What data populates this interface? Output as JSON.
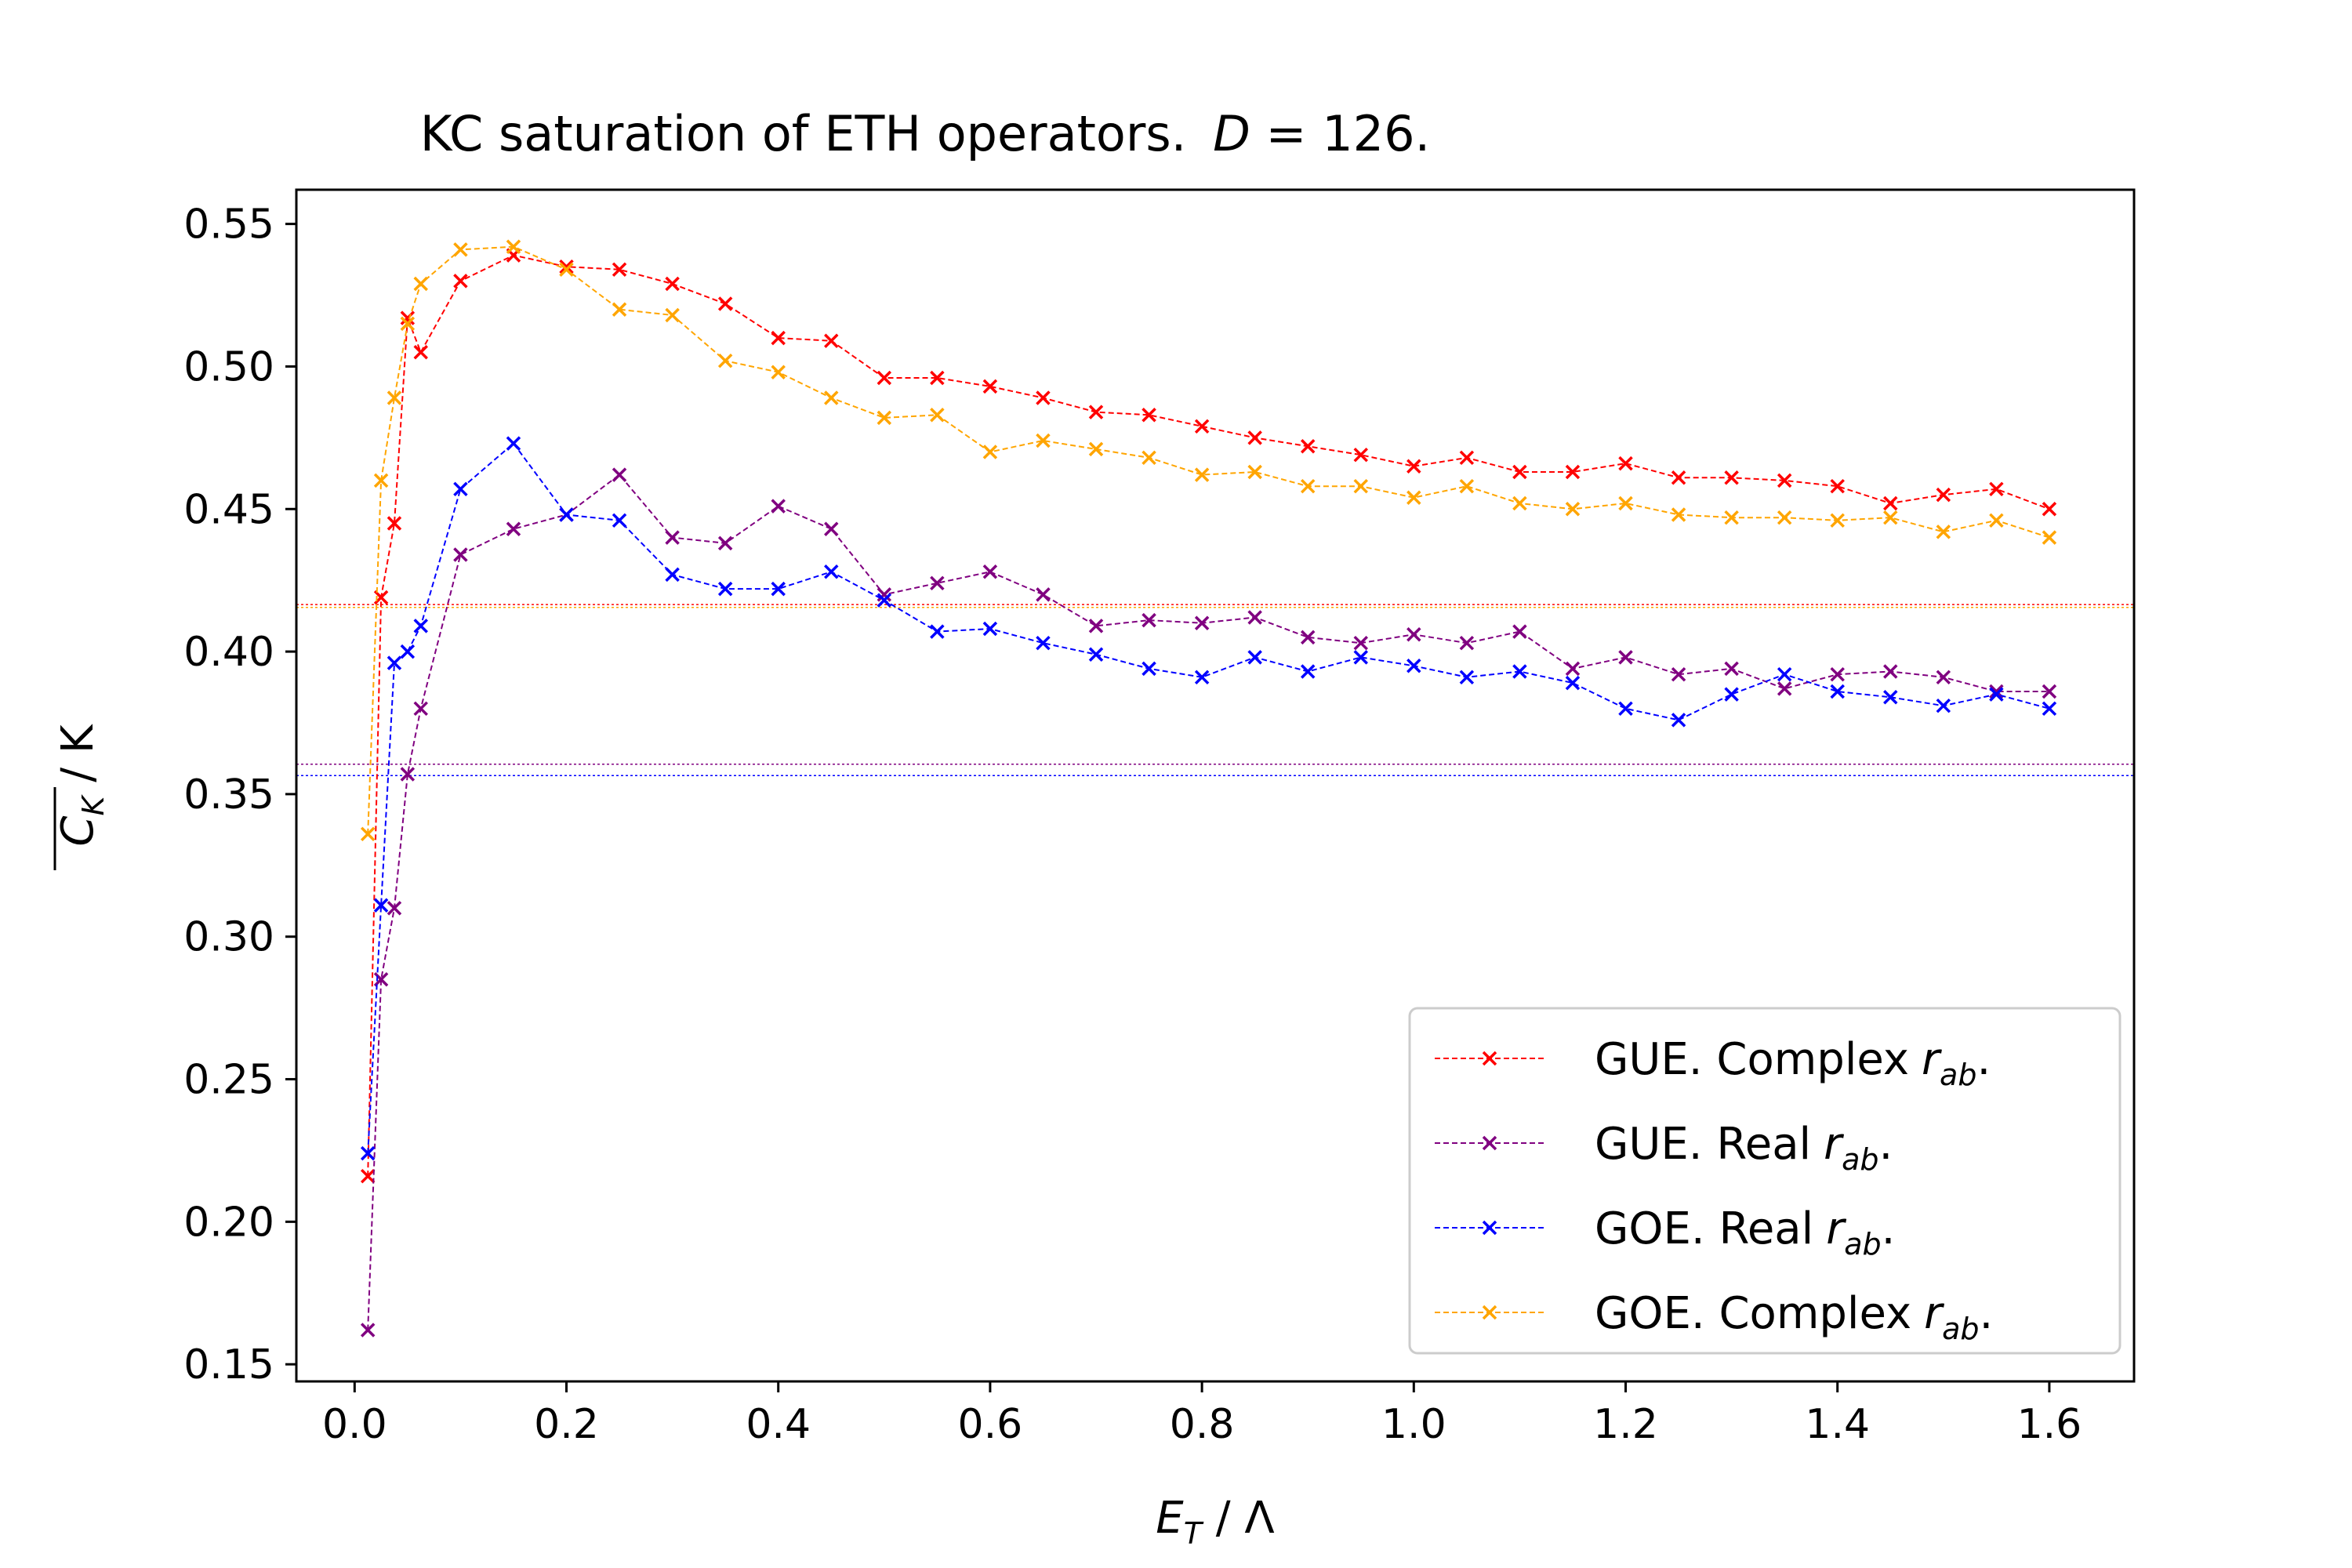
{
  "chart_data": {
    "type": "line",
    "title": "KC saturation of ETH operators.",
    "title_math": {
      "var": "D",
      "op": " = ",
      "value": "126",
      "suffix": "."
    },
    "xlabel": {
      "main": "E",
      "sub": "T",
      "rest": " / Λ"
    },
    "ylabel": {
      "main": "C",
      "sub": "K",
      "rest": " / K"
    },
    "xlim": [
      -0.055,
      1.68
    ],
    "ylim": [
      0.144,
      0.562
    ],
    "xticks": [
      "0.0",
      "0.2",
      "0.4",
      "0.6",
      "0.8",
      "1.0",
      "1.2",
      "1.4",
      "1.6"
    ],
    "yticks": [
      "0.15",
      "0.20",
      "0.25",
      "0.30",
      "0.35",
      "0.40",
      "0.45",
      "0.50",
      "0.55"
    ],
    "x": [
      0.0125,
      0.025,
      0.0375,
      0.05,
      0.0625,
      0.1,
      0.15,
      0.2,
      0.25,
      0.3,
      0.35,
      0.4,
      0.45,
      0.5,
      0.55,
      0.6,
      0.65,
      0.7,
      0.75,
      0.8,
      0.85,
      0.9,
      0.95,
      1.0,
      1.05,
      1.1,
      1.15,
      1.2,
      1.25,
      1.3,
      1.35,
      1.4,
      1.45,
      1.5,
      1.55,
      1.6
    ],
    "series": [
      {
        "name": "GUE. Complex",
        "name_math": "r",
        "name_sub": "ab",
        "name_suffix": ".",
        "color": "#ff0000",
        "saturation_level": 0.4165,
        "values": [
          0.216,
          0.419,
          0.445,
          0.517,
          0.505,
          0.53,
          0.539,
          0.535,
          0.534,
          0.529,
          0.522,
          0.51,
          0.509,
          0.496,
          0.496,
          0.493,
          0.489,
          0.484,
          0.483,
          0.479,
          0.475,
          0.472,
          0.469,
          0.465,
          0.468,
          0.463,
          0.463,
          0.466,
          0.461,
          0.461,
          0.46,
          0.458,
          0.452,
          0.455,
          0.457,
          0.45
        ]
      },
      {
        "name": "GUE. Real",
        "name_math": "r",
        "name_sub": "ab",
        "name_suffix": ".",
        "color": "#800080",
        "saturation_level": 0.3605,
        "values": [
          0.162,
          0.285,
          0.31,
          0.357,
          0.38,
          0.434,
          0.443,
          0.448,
          0.462,
          0.44,
          0.438,
          0.451,
          0.443,
          0.42,
          0.424,
          0.428,
          0.42,
          0.409,
          0.411,
          0.41,
          0.412,
          0.405,
          0.403,
          0.406,
          0.403,
          0.407,
          0.394,
          0.398,
          0.392,
          0.394,
          0.387,
          0.392,
          0.393,
          0.391,
          0.386,
          0.386
        ]
      },
      {
        "name": "GOE. Real",
        "name_math": "r",
        "name_sub": "ab",
        "name_suffix": ".",
        "color": "#0000ff",
        "saturation_level": 0.3565,
        "values": [
          0.224,
          0.311,
          0.396,
          0.4,
          0.409,
          0.457,
          0.473,
          0.448,
          0.446,
          0.427,
          0.422,
          0.422,
          0.428,
          0.418,
          0.407,
          0.408,
          0.403,
          0.399,
          0.394,
          0.391,
          0.398,
          0.393,
          0.398,
          0.395,
          0.391,
          0.393,
          0.389,
          0.38,
          0.376,
          0.385,
          0.392,
          0.386,
          0.384,
          0.381,
          0.385,
          0.38
        ]
      },
      {
        "name": "GOE. Complex",
        "name_math": "r",
        "name_sub": "ab",
        "name_suffix": ".",
        "color": "#ffa500",
        "saturation_level": 0.4155,
        "values": [
          0.336,
          0.46,
          0.489,
          0.515,
          0.529,
          0.541,
          0.542,
          0.534,
          0.52,
          0.518,
          0.502,
          0.498,
          0.489,
          0.482,
          0.483,
          0.47,
          0.474,
          0.471,
          0.468,
          0.462,
          0.463,
          0.458,
          0.458,
          0.454,
          0.458,
          0.452,
          0.45,
          0.452,
          0.448,
          0.447,
          0.447,
          0.446,
          0.447,
          0.442,
          0.446,
          0.44
        ]
      }
    ],
    "legend_position": "lower-right",
    "grid": false
  }
}
